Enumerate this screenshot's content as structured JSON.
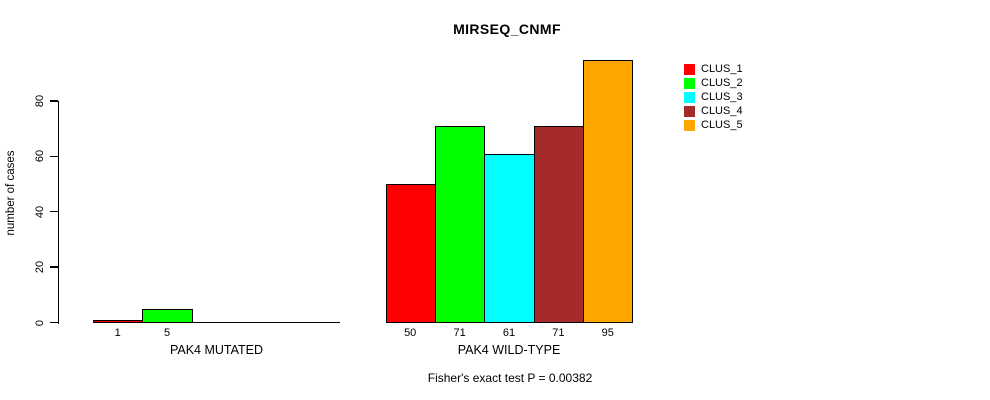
{
  "chart_data": {
    "type": "bar",
    "title": "MIRSEQ_CNMF",
    "ylabel": "number of cases",
    "xlabel": "",
    "yticks": [
      0,
      20,
      40,
      60,
      80
    ],
    "ylim": [
      0,
      95
    ],
    "grid": false,
    "background": "#ffffff",
    "axis_color": "#000000",
    "series_colors": [
      "#FF0000",
      "#00FF00",
      "#00FFFF",
      "#A52A2A",
      "#FFA500"
    ],
    "legend": {
      "position": "right",
      "entries": [
        {
          "label": "CLUS_1",
          "color": "#FF0000"
        },
        {
          "label": "CLUS_2",
          "color": "#00FF00"
        },
        {
          "label": "CLUS_3",
          "color": "#00FFFF"
        },
        {
          "label": "CLUS_4",
          "color": "#A52A2A"
        },
        {
          "label": "CLUS_5",
          "color": "#FFA500"
        }
      ]
    },
    "groups": [
      {
        "label": "PAK4 MUTATED",
        "values": [
          1,
          5,
          0,
          0,
          0
        ]
      },
      {
        "label": "PAK4 WILD-TYPE",
        "values": [
          50,
          71,
          61,
          71,
          95
        ]
      }
    ],
    "annotation": "Fisher's exact test P = 0.00382"
  }
}
